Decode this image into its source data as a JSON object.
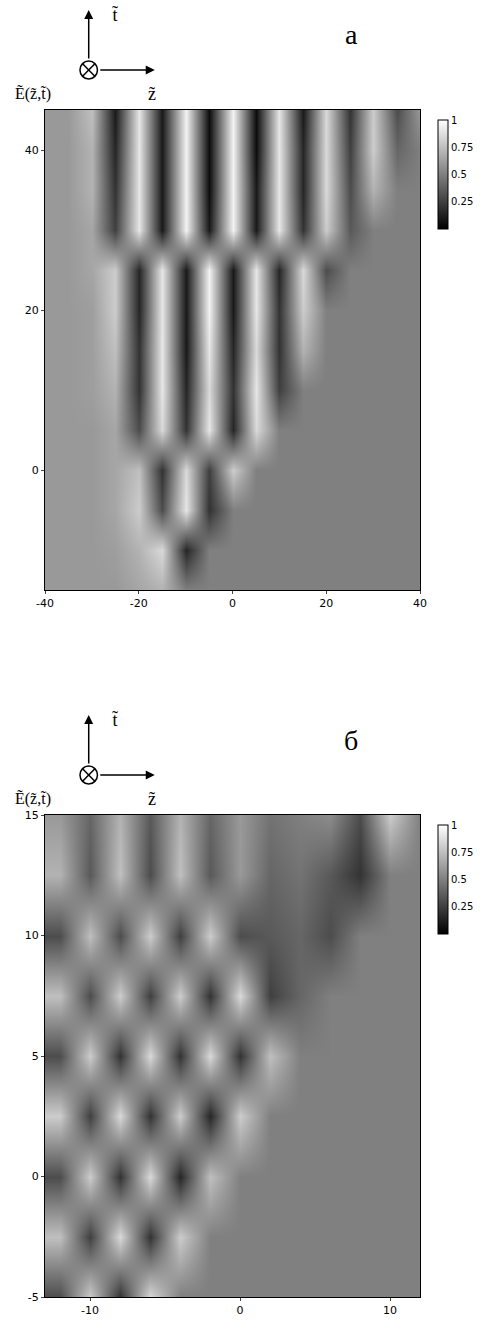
{
  "chart_data": [
    {
      "type": "heatmap",
      "panel": "а",
      "x_label": "z̃",
      "y_label": "t̃",
      "z_label": "Ẽ(z̃,t̃)",
      "x": [
        -40,
        -35,
        -30,
        -25,
        -20,
        -15,
        -10,
        -5,
        0,
        5,
        10,
        15,
        20,
        25,
        30,
        35,
        40
      ],
      "y": [
        -15,
        -10,
        -5,
        0,
        5,
        10,
        15,
        20,
        25,
        30,
        35,
        40,
        45
      ],
      "z": [
        [
          0.6,
          0.6,
          0.6,
          0.6,
          0.65,
          0.7,
          0.5,
          0.5,
          0.5,
          0.5,
          0.5,
          0.5,
          0.5,
          0.5,
          0.5,
          0.5,
          0.5
        ],
        [
          0.6,
          0.6,
          0.6,
          0.62,
          0.7,
          0.85,
          0.15,
          0.5,
          0.5,
          0.5,
          0.5,
          0.5,
          0.5,
          0.5,
          0.5,
          0.5,
          0.5
        ],
        [
          0.6,
          0.6,
          0.6,
          0.65,
          0.8,
          0.3,
          0.9,
          0.2,
          0.5,
          0.5,
          0.5,
          0.5,
          0.5,
          0.5,
          0.5,
          0.5,
          0.5
        ],
        [
          0.6,
          0.6,
          0.6,
          0.65,
          0.75,
          0.2,
          0.85,
          0.25,
          0.8,
          0.5,
          0.5,
          0.5,
          0.5,
          0.5,
          0.5,
          0.5,
          0.5
        ],
        [
          0.6,
          0.6,
          0.6,
          0.65,
          0.3,
          0.85,
          0.2,
          0.9,
          0.15,
          0.85,
          0.5,
          0.5,
          0.5,
          0.5,
          0.5,
          0.5,
          0.5
        ],
        [
          0.6,
          0.6,
          0.62,
          0.7,
          0.2,
          0.9,
          0.15,
          0.85,
          0.2,
          0.9,
          0.25,
          0.5,
          0.5,
          0.5,
          0.5,
          0.5,
          0.5
        ],
        [
          0.6,
          0.6,
          0.62,
          0.75,
          0.2,
          0.9,
          0.1,
          0.9,
          0.15,
          0.85,
          0.2,
          0.7,
          0.5,
          0.5,
          0.5,
          0.5,
          0.5
        ],
        [
          0.6,
          0.6,
          0.62,
          0.8,
          0.15,
          0.9,
          0.1,
          0.95,
          0.1,
          0.9,
          0.2,
          0.8,
          0.5,
          0.5,
          0.5,
          0.5,
          0.5
        ],
        [
          0.6,
          0.6,
          0.65,
          0.8,
          0.15,
          0.9,
          0.1,
          0.95,
          0.1,
          0.9,
          0.15,
          0.85,
          0.3,
          0.5,
          0.5,
          0.5,
          0.5
        ],
        [
          0.6,
          0.6,
          0.65,
          0.25,
          0.9,
          0.1,
          0.95,
          0.1,
          0.95,
          0.1,
          0.9,
          0.2,
          0.8,
          0.35,
          0.5,
          0.5,
          0.5
        ],
        [
          0.6,
          0.6,
          0.7,
          0.2,
          0.9,
          0.1,
          0.95,
          0.05,
          0.95,
          0.1,
          0.9,
          0.15,
          0.85,
          0.3,
          0.7,
          0.5,
          0.5
        ],
        [
          0.6,
          0.6,
          0.7,
          0.15,
          0.9,
          0.1,
          0.95,
          0.05,
          0.95,
          0.05,
          0.9,
          0.15,
          0.85,
          0.25,
          0.8,
          0.4,
          0.5
        ],
        [
          0.6,
          0.6,
          0.75,
          0.1,
          0.9,
          0.1,
          0.95,
          0.05,
          0.95,
          0.05,
          0.9,
          0.1,
          0.85,
          0.2,
          0.8,
          0.3,
          0.6
        ]
      ],
      "xlim": [
        -40,
        40
      ],
      "ylim": [
        -15,
        45
      ],
      "xticks": [
        -40,
        -20,
        0,
        20,
        40
      ],
      "yticks": [
        0,
        20,
        40
      ],
      "zlim": [
        0,
        1
      ],
      "colorbar_ticks": [
        0.25,
        0.5,
        0.75,
        1
      ],
      "color": "gray"
    },
    {
      "type": "heatmap",
      "panel": "б",
      "x_label": "z̃",
      "y_label": "t̃",
      "z_label": "Ẽ(z̃,t̃)",
      "x": [
        -12,
        -10,
        -8,
        -6,
        -4,
        -2,
        0,
        2,
        4,
        6,
        8,
        10,
        12
      ],
      "y": [
        -5,
        -2.5,
        0,
        2.5,
        5,
        7.5,
        10,
        12.5,
        15
      ],
      "z": [
        [
          0.3,
          0.8,
          0.2,
          0.85,
          0.5,
          0.5,
          0.5,
          0.5,
          0.5,
          0.5,
          0.5,
          0.5,
          0.5
        ],
        [
          0.75,
          0.25,
          0.85,
          0.2,
          0.8,
          0.5,
          0.5,
          0.5,
          0.5,
          0.5,
          0.5,
          0.5,
          0.5
        ],
        [
          0.3,
          0.8,
          0.2,
          0.85,
          0.15,
          0.75,
          0.5,
          0.5,
          0.5,
          0.5,
          0.5,
          0.5,
          0.5
        ],
        [
          0.8,
          0.25,
          0.85,
          0.2,
          0.8,
          0.15,
          0.8,
          0.5,
          0.5,
          0.5,
          0.5,
          0.5,
          0.5
        ],
        [
          0.3,
          0.8,
          0.2,
          0.85,
          0.2,
          0.85,
          0.2,
          0.75,
          0.5,
          0.5,
          0.5,
          0.5,
          0.5
        ],
        [
          0.75,
          0.3,
          0.8,
          0.25,
          0.8,
          0.2,
          0.85,
          0.25,
          0.4,
          0.5,
          0.5,
          0.5,
          0.5
        ],
        [
          0.3,
          0.75,
          0.3,
          0.8,
          0.25,
          0.8,
          0.3,
          0.35,
          0.4,
          0.3,
          0.5,
          0.5,
          0.5
        ],
        [
          0.7,
          0.35,
          0.75,
          0.3,
          0.75,
          0.35,
          0.6,
          0.4,
          0.45,
          0.35,
          0.2,
          0.5,
          0.5
        ],
        [
          0.6,
          0.4,
          0.7,
          0.35,
          0.7,
          0.4,
          0.6,
          0.45,
          0.5,
          0.55,
          0.3,
          0.8,
          0.5
        ]
      ],
      "xlim": [
        -13,
        12
      ],
      "ylim": [
        -5,
        15
      ],
      "xticks": [
        -10,
        0,
        10
      ],
      "yticks": [
        -5,
        0,
        5,
        10,
        15
      ],
      "zlim": [
        0,
        1
      ],
      "colorbar_ticks": [
        0.25,
        0.5,
        0.75,
        1
      ],
      "color": "gray"
    }
  ]
}
